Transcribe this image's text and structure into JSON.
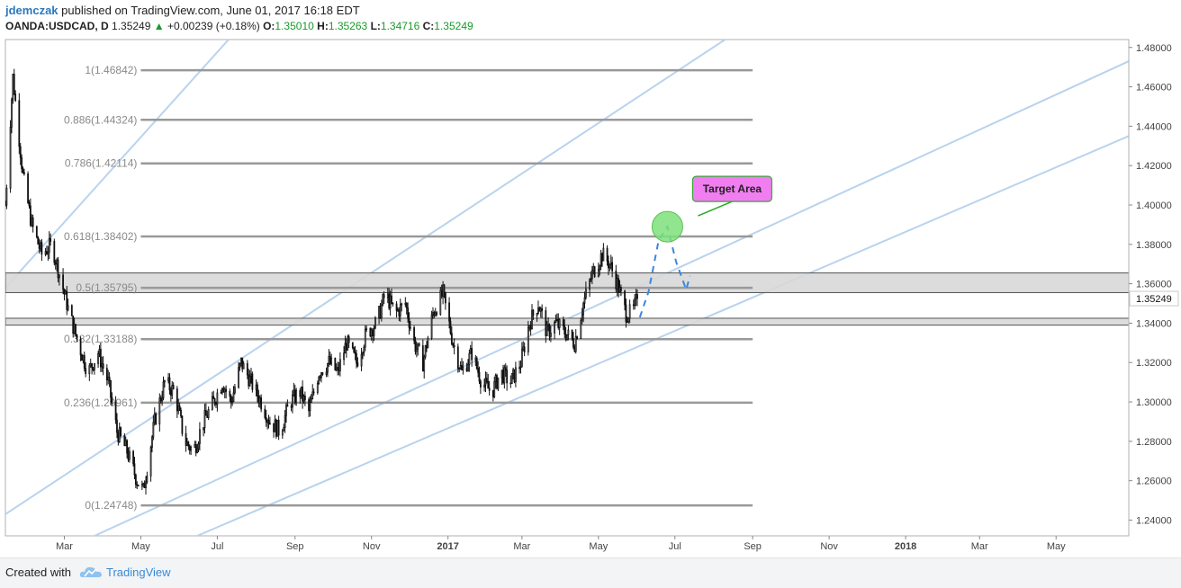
{
  "header": {
    "author": "jdemczak",
    "published_text": "published on TradingView.com, June 01, 2017 16:18 EDT",
    "symbol": "OANDA:USDCAD, D",
    "last": "1.35249",
    "arrow": "▲",
    "change": "+0.00239 (+0.18%)",
    "open_label": "O:",
    "open": "1.35010",
    "high_label": "H:",
    "high": "1.35263",
    "low_label": "L:",
    "low": "1.34716",
    "close_label": "C:",
    "close": "1.35249"
  },
  "footer": {
    "created_with": "Created with",
    "brand": "TradingView"
  },
  "colors": {
    "accent": "#2a78c0",
    "up": "#1a9a2a",
    "candle": "#111111",
    "channel": "#b9d3ee",
    "zone": "#d8d8d8",
    "fib_line": "#999999",
    "target_box": "#f07ef0",
    "target_circle": "#7ee07a",
    "projection": "#3a86e0"
  },
  "icons": {
    "tv_logo": "cloud-logo-icon"
  },
  "chart_data": {
    "type": "candlestick",
    "title": "",
    "xlabel": "",
    "ylabel": "",
    "ylim": [
      1.232,
      1.484
    ],
    "y_ticks": [
      "1.48000",
      "1.46000",
      "1.44000",
      "1.42000",
      "1.40000",
      "1.38000",
      "1.36000",
      "1.34000",
      "1.32000",
      "1.30000",
      "1.28000",
      "1.26000",
      "1.24000"
    ],
    "current_price_label": "1.35249",
    "current_price": 1.35249,
    "x_ticks": [
      {
        "label": "Mar",
        "date": "2016-03-01",
        "bold": false
      },
      {
        "label": "May",
        "date": "2016-05-01",
        "bold": false
      },
      {
        "label": "Jul",
        "date": "2016-07-01",
        "bold": false
      },
      {
        "label": "Sep",
        "date": "2016-09-01",
        "bold": false
      },
      {
        "label": "Nov",
        "date": "2016-11-01",
        "bold": false
      },
      {
        "label": "2017",
        "date": "2017-01-01",
        "bold": true
      },
      {
        "label": "Mar",
        "date": "2017-03-01",
        "bold": false
      },
      {
        "label": "May",
        "date": "2017-05-01",
        "bold": false
      },
      {
        "label": "Jul",
        "date": "2017-07-01",
        "bold": false
      },
      {
        "label": "Sep",
        "date": "2017-09-01",
        "bold": false
      },
      {
        "label": "Nov",
        "date": "2017-11-01",
        "bold": false
      },
      {
        "label": "2018",
        "date": "2018-01-01",
        "bold": true
      },
      {
        "label": "Mar",
        "date": "2018-03-01",
        "bold": false
      },
      {
        "label": "May",
        "date": "2018-05-01",
        "bold": false
      }
    ],
    "x_range": [
      "2016-01-14",
      "2018-06-28"
    ],
    "price_path": [
      [
        "2016-01-14",
        1.4
      ],
      [
        "2016-01-20",
        1.465
      ],
      [
        "2016-01-28",
        1.415
      ],
      [
        "2016-02-04",
        1.39
      ],
      [
        "2016-02-12",
        1.375
      ],
      [
        "2016-02-20",
        1.38
      ],
      [
        "2016-02-28",
        1.36
      ],
      [
        "2016-03-05",
        1.345
      ],
      [
        "2016-03-12",
        1.33
      ],
      [
        "2016-03-20",
        1.315
      ],
      [
        "2016-03-28",
        1.325
      ],
      [
        "2016-04-05",
        1.31
      ],
      [
        "2016-04-12",
        1.285
      ],
      [
        "2016-04-20",
        1.275
      ],
      [
        "2016-04-28",
        1.26
      ],
      [
        "2016-05-03",
        1.255
      ],
      [
        "2016-05-12",
        1.29
      ],
      [
        "2016-05-20",
        1.31
      ],
      [
        "2016-05-28",
        1.305
      ],
      [
        "2016-06-05",
        1.28
      ],
      [
        "2016-06-12",
        1.275
      ],
      [
        "2016-06-20",
        1.29
      ],
      [
        "2016-06-28",
        1.3
      ],
      [
        "2016-07-05",
        1.31
      ],
      [
        "2016-07-12",
        1.3
      ],
      [
        "2016-07-20",
        1.32
      ],
      [
        "2016-07-28",
        1.31
      ],
      [
        "2016-08-05",
        1.3
      ],
      [
        "2016-08-12",
        1.29
      ],
      [
        "2016-08-20",
        1.285
      ],
      [
        "2016-08-28",
        1.3
      ],
      [
        "2016-09-05",
        1.305
      ],
      [
        "2016-09-12",
        1.295
      ],
      [
        "2016-09-20",
        1.315
      ],
      [
        "2016-09-28",
        1.32
      ],
      [
        "2016-10-05",
        1.315
      ],
      [
        "2016-10-12",
        1.33
      ],
      [
        "2016-10-20",
        1.32
      ],
      [
        "2016-10-28",
        1.335
      ],
      [
        "2016-11-05",
        1.34
      ],
      [
        "2016-11-12",
        1.355
      ],
      [
        "2016-11-20",
        1.345
      ],
      [
        "2016-11-28",
        1.35
      ],
      [
        "2016-12-05",
        1.33
      ],
      [
        "2016-12-12",
        1.32
      ],
      [
        "2016-12-20",
        1.345
      ],
      [
        "2016-12-28",
        1.355
      ],
      [
        "2017-01-05",
        1.33
      ],
      [
        "2017-01-12",
        1.315
      ],
      [
        "2017-01-20",
        1.325
      ],
      [
        "2017-01-28",
        1.31
      ],
      [
        "2017-02-05",
        1.305
      ],
      [
        "2017-02-12",
        1.315
      ],
      [
        "2017-02-20",
        1.31
      ],
      [
        "2017-02-28",
        1.32
      ],
      [
        "2017-03-07",
        1.34
      ],
      [
        "2017-03-14",
        1.35
      ],
      [
        "2017-03-21",
        1.335
      ],
      [
        "2017-03-28",
        1.34
      ],
      [
        "2017-04-05",
        1.335
      ],
      [
        "2017-04-12",
        1.33
      ],
      [
        "2017-04-19",
        1.35
      ],
      [
        "2017-04-26",
        1.365
      ],
      [
        "2017-05-04",
        1.375
      ],
      [
        "2017-05-10",
        1.37
      ],
      [
        "2017-05-16",
        1.36
      ],
      [
        "2017-05-23",
        1.345
      ],
      [
        "2017-05-28",
        1.345
      ],
      [
        "2017-06-01",
        1.35249
      ]
    ],
    "fib_levels": [
      {
        "label": "1(1.46842)",
        "ratio": 1,
        "price": 1.46842
      },
      {
        "label": "0.886(1.44324)",
        "ratio": 0.886,
        "price": 1.44324
      },
      {
        "label": "0.786(1.42114)",
        "ratio": 0.786,
        "price": 1.42114
      },
      {
        "label": "0.618(1.38402)",
        "ratio": 0.618,
        "price": 1.38402
      },
      {
        "label": "0.5(1.35795)",
        "ratio": 0.5,
        "price": 1.35795
      },
      {
        "label": "0.382(1.33188)",
        "ratio": 0.382,
        "price": 1.33188
      },
      {
        "label": "0.236(1.29961)",
        "ratio": 0.236,
        "price": 1.29961
      },
      {
        "label": "0(1.24748)",
        "ratio": 0,
        "price": 1.24748
      }
    ],
    "fib_range": [
      "2016-05-01",
      "2017-09-01"
    ],
    "zones": [
      {
        "from": 1.3555,
        "to": 1.3655
      },
      {
        "from": 1.339,
        "to": 1.3425
      }
    ],
    "channel_lines": [
      {
        "from": [
          "2016-01-14",
          1.358
        ],
        "to": [
          "2016-07-10",
          1.484
        ]
      },
      {
        "from": [
          "2016-01-14",
          1.243
        ],
        "to": [
          "2017-08-10",
          1.484
        ]
      },
      {
        "from": [
          "2016-03-25",
          1.232
        ],
        "to": [
          "2018-06-28",
          1.473
        ]
      },
      {
        "from": [
          "2016-06-15",
          1.232
        ],
        "to": [
          "2018-06-28",
          1.435
        ]
      }
    ],
    "annotation": {
      "text": "Target Area",
      "target_date": "2017-06-25",
      "target_price": 1.389,
      "projection": [
        [
          "2017-06-03",
          1.343
        ],
        [
          "2017-06-10",
          1.356
        ],
        [
          "2017-06-18",
          1.382
        ],
        [
          "2017-06-25",
          1.389
        ],
        [
          "2017-07-02",
          1.371
        ],
        [
          "2017-07-10",
          1.357
        ],
        [
          "2017-07-13",
          1.364
        ]
      ]
    }
  }
}
